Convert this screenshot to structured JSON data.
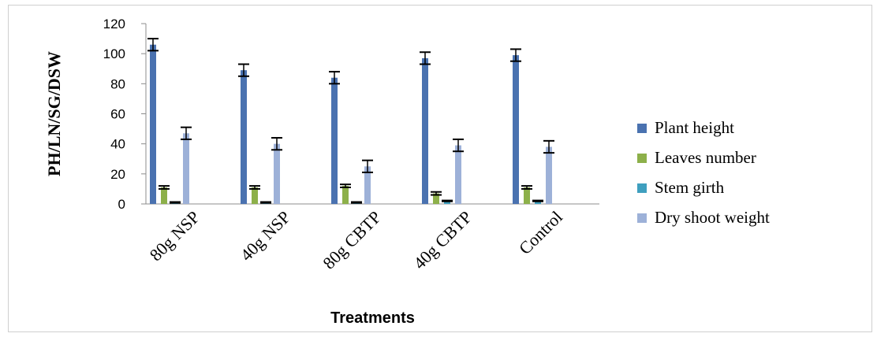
{
  "chart_data": {
    "type": "bar",
    "title": "",
    "xlabel": "Treatments",
    "ylabel": "PH/LN/SG/DSW",
    "ylim": [
      0,
      120
    ],
    "yticks": [
      0,
      20,
      40,
      60,
      80,
      100,
      120
    ],
    "categories": [
      "80g NSP",
      "40g NSP",
      "80g CBTP",
      "40g CBTP",
      "Control"
    ],
    "series": [
      {
        "name": "Plant height",
        "color": "#4a72b0",
        "values": [
          106,
          89,
          84,
          97,
          99
        ],
        "errors": [
          4,
          4,
          4,
          4,
          4
        ]
      },
      {
        "name": "Leaves number",
        "color": "#8db04a",
        "values": [
          11,
          11,
          12,
          7,
          11
        ],
        "errors": [
          1,
          1,
          1,
          1,
          1
        ]
      },
      {
        "name": "Stem girth",
        "color": "#3f9fbf",
        "values": [
          1,
          1,
          1,
          2,
          2
        ],
        "errors": [
          0.3,
          0.3,
          0.3,
          0.3,
          0.3
        ]
      },
      {
        "name": "Dry shoot weight",
        "color": "#9db1d8",
        "values": [
          47,
          40,
          25,
          39,
          38
        ],
        "errors": [
          4,
          4,
          4,
          4,
          4
        ]
      }
    ],
    "grid": false,
    "legend_position": "right"
  }
}
